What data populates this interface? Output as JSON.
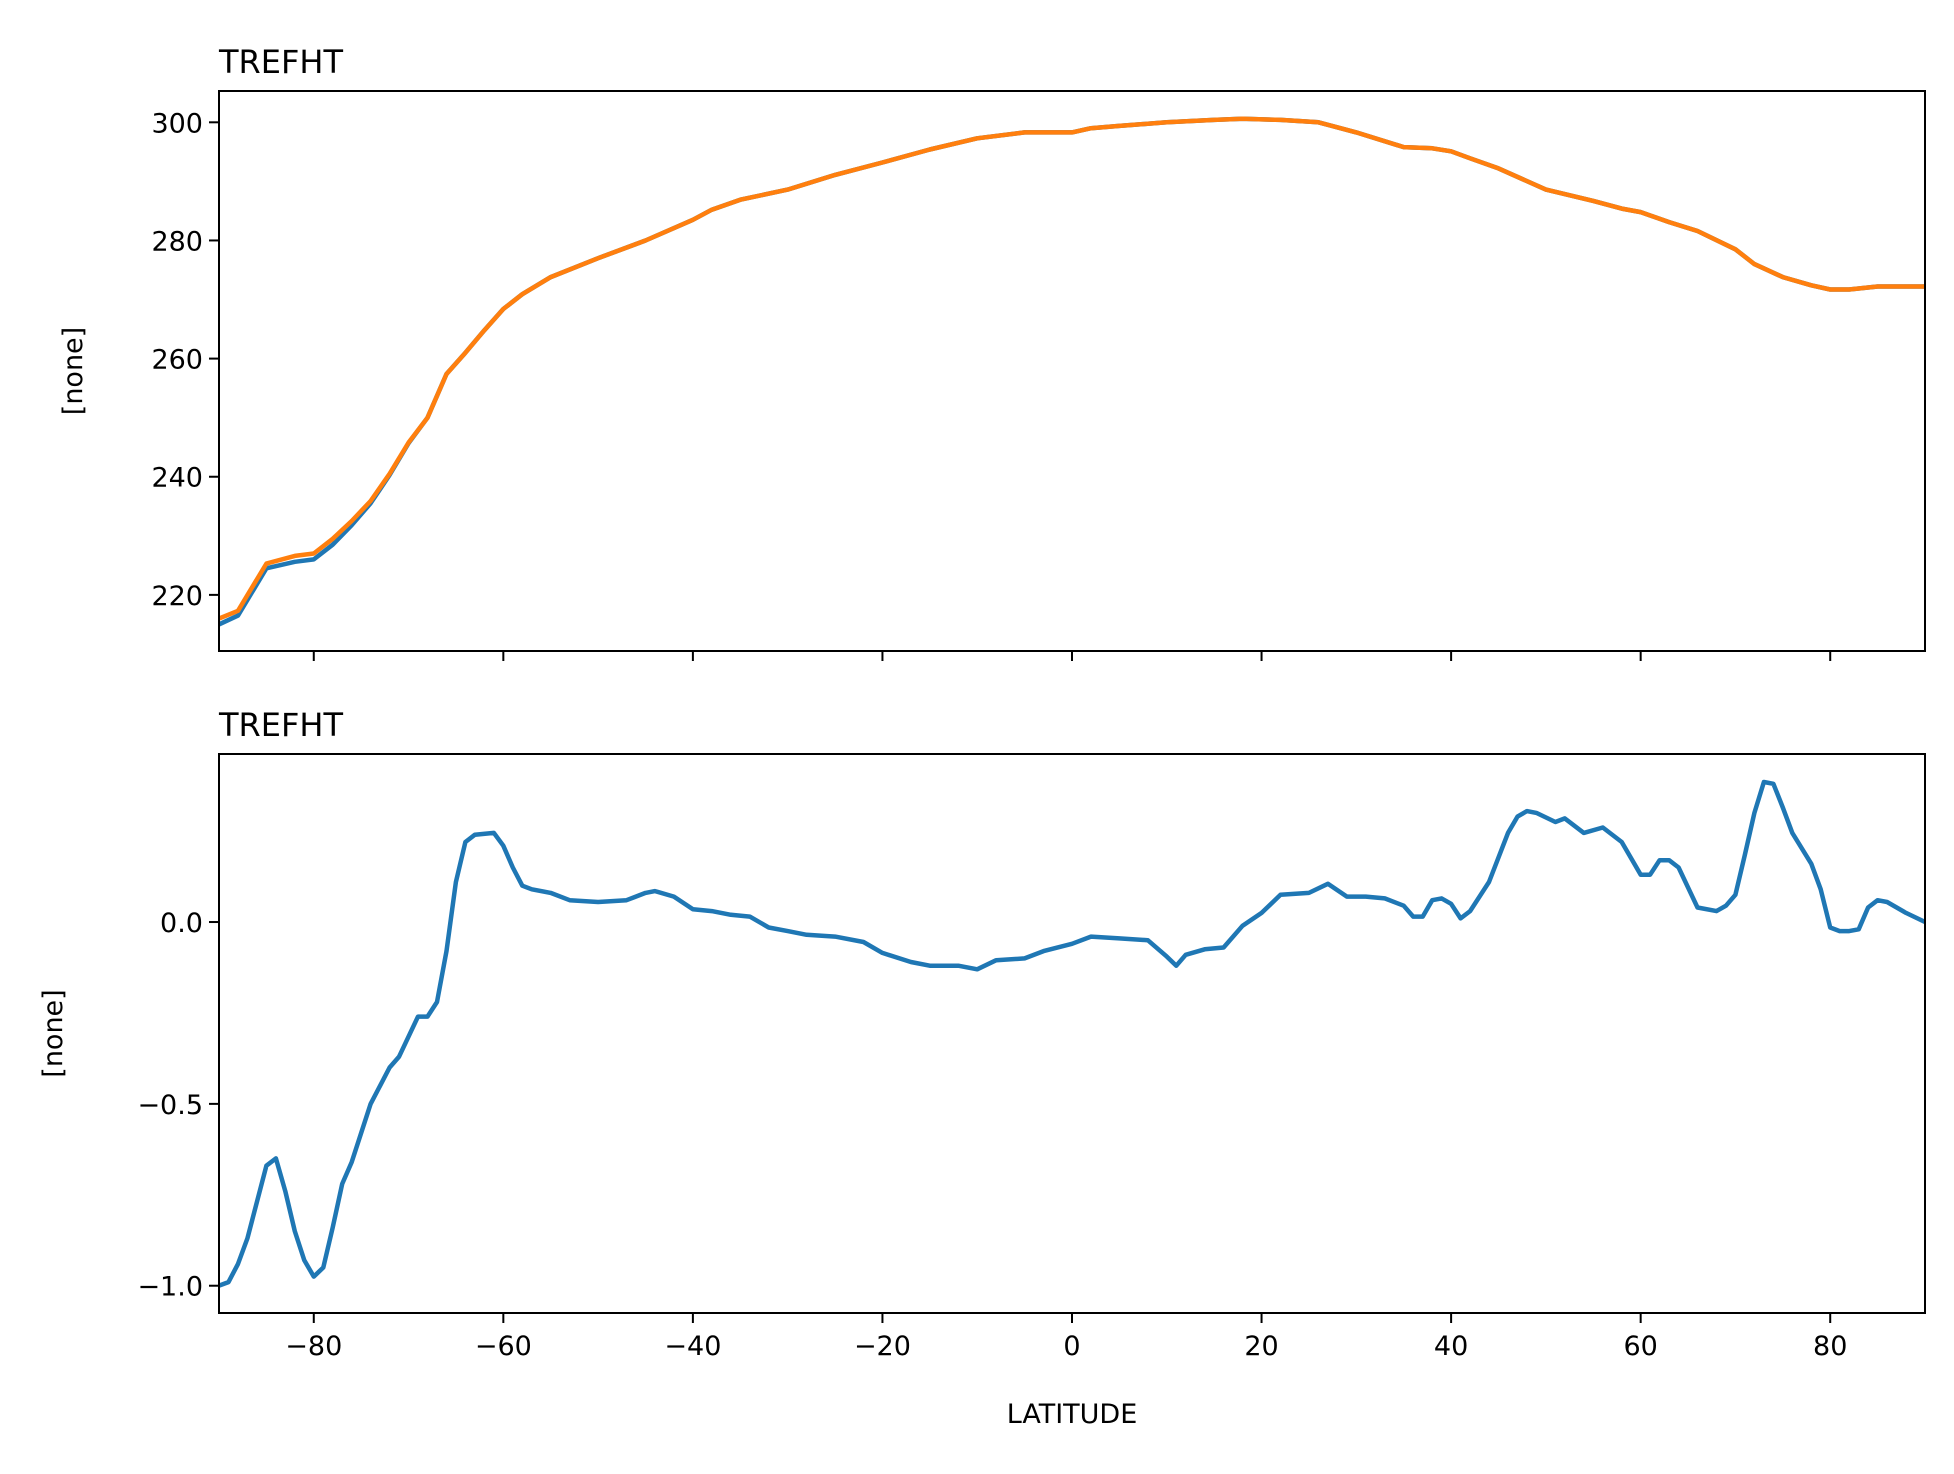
{
  "chart_data": [
    {
      "type": "line",
      "title": "TREFHT",
      "xlabel": "",
      "ylabel": "[none]",
      "xlim": [
        -90,
        90
      ],
      "ylim": [
        210.5,
        305.3
      ],
      "xticks": [
        -80,
        -60,
        -40,
        -20,
        0,
        20,
        40,
        60,
        80
      ],
      "xtick_labels_shown": false,
      "yticks": [
        220,
        240,
        260,
        280,
        300
      ],
      "ytick_labels": [
        "220",
        "240",
        "260",
        "280",
        "300"
      ],
      "grid": false,
      "series": [
        {
          "color": "#1f77b4",
          "x": [
            -90,
            -88,
            -85,
            -82,
            -80,
            -78,
            -76,
            -74,
            -72,
            -70,
            -68,
            -66,
            -64,
            -62,
            -60,
            -58,
            -55,
            -50,
            -45,
            -40,
            -38,
            -35,
            -30,
            -25,
            -20,
            -15,
            -10,
            -5,
            0,
            2,
            5,
            10,
            15,
            18,
            22,
            26,
            30,
            35,
            38,
            40,
            42,
            45,
            50,
            55,
            58,
            60,
            63,
            66,
            70,
            72,
            75,
            78,
            80,
            82,
            85,
            90
          ],
          "y": [
            215,
            216.5,
            224.5,
            225.6,
            226,
            228.5,
            231.8,
            235.5,
            240.3,
            245.7,
            250,
            257.4,
            261,
            264.8,
            268.4,
            270.9,
            273.8,
            277,
            280,
            283.5,
            285.2,
            286.9,
            288.6,
            291.1,
            293.2,
            295.4,
            297.3,
            298.3,
            298.3,
            299,
            299.4,
            300,
            300.4,
            300.6,
            300.4,
            300,
            298.3,
            295.8,
            295.6,
            295.1,
            293.9,
            292.2,
            288.6,
            286.7,
            285.4,
            284.8,
            283.1,
            281.6,
            278.5,
            276,
            273.8,
            272.4,
            271.7,
            271.7,
            272.2,
            272.2
          ]
        },
        {
          "color": "#ff7f0e",
          "x": [
            -90,
            -88,
            -85,
            -82,
            -80,
            -78,
            -76,
            -74,
            -72,
            -70,
            -68,
            -66,
            -64,
            -62,
            -60,
            -58,
            -55,
            -50,
            -45,
            -40,
            -38,
            -35,
            -30,
            -25,
            -20,
            -15,
            -10,
            -5,
            0,
            2,
            5,
            10,
            15,
            18,
            22,
            26,
            30,
            35,
            38,
            40,
            42,
            45,
            50,
            55,
            58,
            60,
            63,
            66,
            70,
            72,
            75,
            78,
            80,
            82,
            85,
            90
          ],
          "y": [
            216,
            217.3,
            225.3,
            226.6,
            227,
            229.5,
            232.5,
            235.9,
            240.5,
            245.8,
            250,
            257.4,
            261,
            264.8,
            268.4,
            270.9,
            273.8,
            277,
            280,
            283.5,
            285.2,
            286.9,
            288.6,
            291.1,
            293.2,
            295.4,
            297.3,
            298.3,
            298.3,
            299,
            299.4,
            300,
            300.4,
            300.6,
            300.4,
            300,
            298.3,
            295.8,
            295.6,
            295.1,
            293.9,
            292.2,
            288.6,
            286.7,
            285.4,
            284.8,
            283.1,
            281.6,
            278.5,
            276,
            273.8,
            272.4,
            271.7,
            271.7,
            272.2,
            272.2
          ]
        }
      ]
    },
    {
      "type": "line",
      "title": "TREFHT",
      "xlabel": "LATITUDE",
      "ylabel": "[none]",
      "xlim": [
        -90,
        90
      ],
      "ylim": [
        -1.075,
        0.462
      ],
      "xticks": [
        -80,
        -60,
        -40,
        -20,
        0,
        20,
        40,
        60,
        80
      ],
      "xtick_labels": [
        "−80",
        "−60",
        "−40",
        "−20",
        "0",
        "20",
        "40",
        "60",
        "80"
      ],
      "yticks": [
        -1.0,
        -0.5,
        0.0
      ],
      "ytick_labels": [
        "−1.0",
        "−0.5",
        "0.0"
      ],
      "grid": false,
      "series": [
        {
          "color": "#1f77b4",
          "x": [
            -90,
            -89,
            -88,
            -87,
            -85,
            -84,
            -83,
            -82,
            -81,
            -80,
            -79,
            -78,
            -77,
            -76,
            -74,
            -72,
            -71,
            -69,
            -68,
            -67,
            -66,
            -65,
            -64,
            -63,
            -61,
            -60,
            -59,
            -58,
            -57,
            -55,
            -53,
            -50,
            -47,
            -45,
            -44,
            -42,
            -40,
            -38,
            -36,
            -34,
            -32,
            -30,
            -28,
            -25,
            -22,
            -20,
            -17,
            -15,
            -12,
            -10,
            -8,
            -5,
            -3,
            0,
            2,
            5,
            8,
            10,
            11,
            12,
            14,
            16,
            18,
            20,
            22,
            25,
            27,
            29,
            31,
            33,
            35,
            36,
            37,
            38,
            39,
            40,
            41,
            42,
            44,
            46,
            47,
            48,
            49,
            51,
            52,
            54,
            56,
            58,
            60,
            61,
            62,
            63,
            64,
            66,
            68,
            69,
            70,
            71,
            72,
            73,
            74,
            75,
            76,
            78,
            79,
            80,
            81,
            82,
            83,
            84,
            85,
            86,
            88,
            90
          ],
          "y": [
            -1.0,
            -0.99,
            -0.94,
            -0.87,
            -0.67,
            -0.65,
            -0.74,
            -0.85,
            -0.93,
            -0.975,
            -0.95,
            -0.84,
            -0.72,
            -0.66,
            -0.5,
            -0.4,
            -0.37,
            -0.26,
            -0.26,
            -0.22,
            -0.08,
            0.11,
            0.22,
            0.24,
            0.245,
            0.21,
            0.15,
            0.1,
            0.09,
            0.08,
            0.06,
            0.055,
            0.06,
            0.08,
            0.085,
            0.07,
            0.035,
            0.03,
            0.02,
            0.015,
            -0.015,
            -0.025,
            -0.035,
            -0.04,
            -0.055,
            -0.085,
            -0.11,
            -0.12,
            -0.12,
            -0.13,
            -0.105,
            -0.1,
            -0.08,
            -0.06,
            -0.04,
            -0.045,
            -0.05,
            -0.095,
            -0.12,
            -0.09,
            -0.075,
            -0.07,
            -0.01,
            0.025,
            0.075,
            0.08,
            0.105,
            0.07,
            0.07,
            0.065,
            0.045,
            0.015,
            0.015,
            0.06,
            0.065,
            0.05,
            0.01,
            0.03,
            0.11,
            0.245,
            0.29,
            0.305,
            0.3,
            0.275,
            0.285,
            0.245,
            0.26,
            0.22,
            0.13,
            0.13,
            0.17,
            0.17,
            0.15,
            0.04,
            0.03,
            0.045,
            0.075,
            0.185,
            0.3,
            0.385,
            0.38,
            0.315,
            0.245,
            0.16,
            0.09,
            -0.015,
            -0.025,
            -0.025,
            -0.02,
            0.04,
            0.06,
            0.055,
            0.025,
            0.0
          ]
        }
      ]
    }
  ]
}
